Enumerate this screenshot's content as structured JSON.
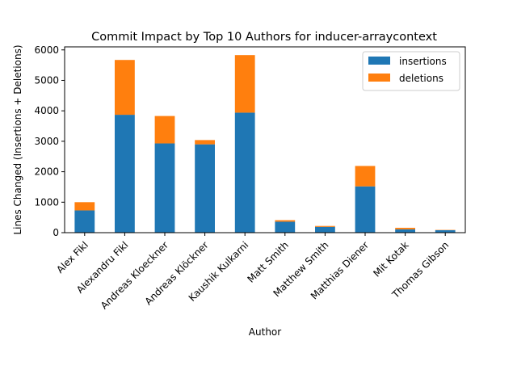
{
  "chart_data": {
    "type": "bar",
    "stacked": true,
    "title": "Commit Impact by Top 10 Authors for inducer-arraycontext",
    "xlabel": "Author",
    "ylabel": "Lines Changed (Insertions + Deletions)",
    "categories": [
      "Alex Fikl",
      "Alexandru Fikl",
      "Andreas Kloeckner",
      "Andreas Klöckner",
      "Kaushik Kulkarni",
      "Matt Smith",
      "Matthew Smith",
      "Matthias Diener",
      "Mit Kotak",
      "Thomas Gibson"
    ],
    "series": [
      {
        "name": "insertions",
        "color": "#1f77b4",
        "values": [
          730,
          3870,
          2930,
          2900,
          3940,
          360,
          190,
          1520,
          110,
          80
        ]
      },
      {
        "name": "deletions",
        "color": "#ff7f0e",
        "values": [
          270,
          1800,
          900,
          140,
          1890,
          50,
          30,
          670,
          50,
          10
        ]
      }
    ],
    "yticks": [
      0,
      1000,
      2000,
      3000,
      4000,
      5000,
      6000
    ],
    "ylim": [
      0,
      6100
    ],
    "grid": false,
    "legend_position": "top-right"
  }
}
